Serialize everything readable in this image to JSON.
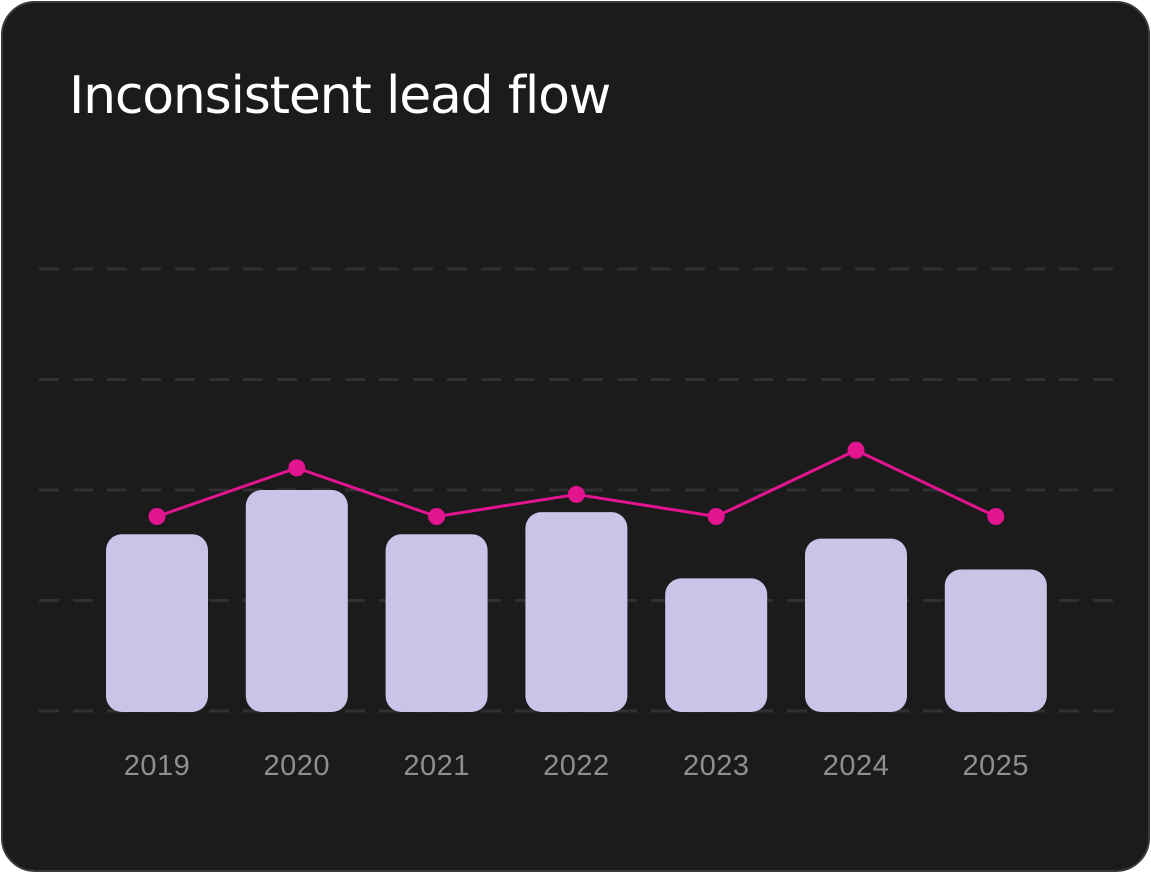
{
  "card": {
    "title": "Inconsistent lead flow"
  },
  "colors": {
    "background": "#1b1b1c",
    "bar": "#c9c4e8",
    "line": "#e3148f",
    "grid": "#303033",
    "tick_text": "#8f8f93",
    "title_text": "#ffffff"
  },
  "chart_data": {
    "type": "bar",
    "title": "Inconsistent lead flow",
    "xlabel": "",
    "ylabel": "",
    "categories": [
      "2019",
      "2020",
      "2021",
      "2022",
      "2023",
      "2024",
      "2025"
    ],
    "series": [
      {
        "type": "bar",
        "values": [
          40,
          50,
          40,
          45,
          30,
          39,
          32
        ]
      },
      {
        "type": "line",
        "values": [
          44,
          55,
          44,
          49,
          44,
          59,
          44
        ]
      }
    ],
    "ylim": [
      0,
      100
    ],
    "grid": true,
    "legend": "none"
  }
}
